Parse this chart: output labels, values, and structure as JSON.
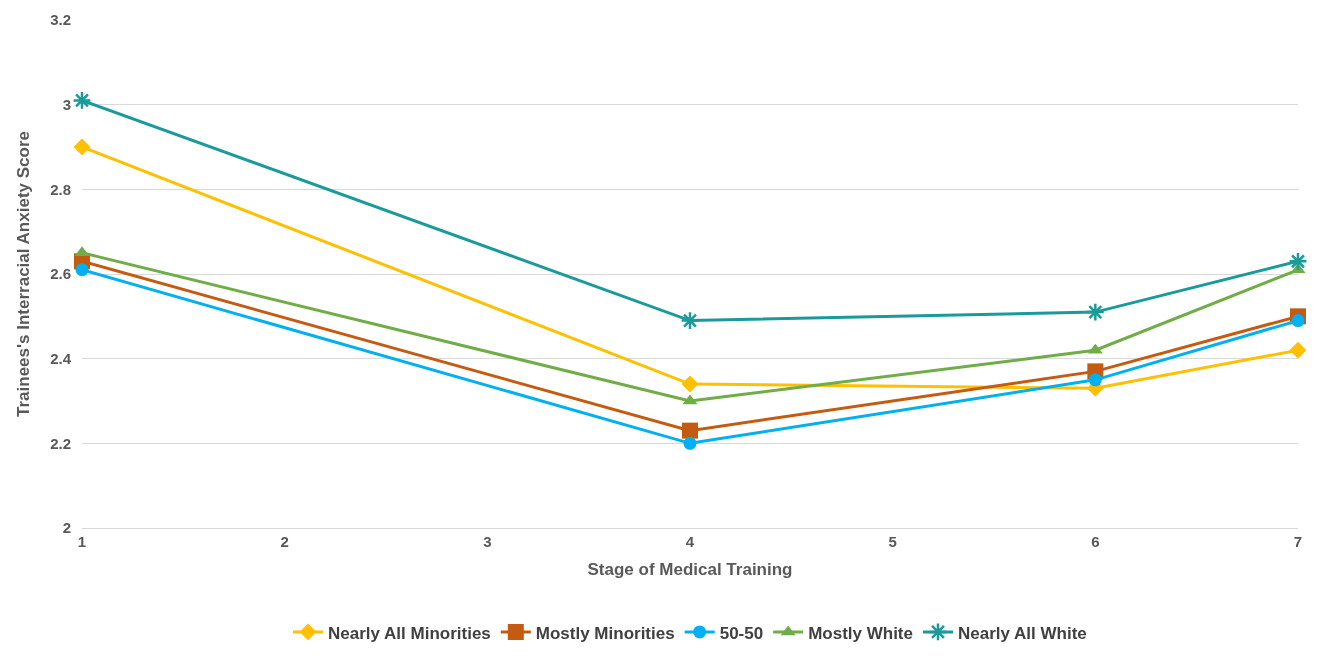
{
  "chart_data": {
    "type": "line",
    "xlabel": "Stage of Medical Training",
    "ylabel": "Trainees's Interracial Anxiety Score",
    "x": [
      1,
      4,
      6,
      7
    ],
    "xlim": [
      1,
      7
    ],
    "xticks": [
      1,
      2,
      3,
      4,
      5,
      6,
      7
    ],
    "ylim": [
      2,
      3.2
    ],
    "yticks": [
      2,
      2.2,
      2.4,
      2.6,
      2.8,
      3,
      3.2
    ],
    "grid": "y",
    "legend": "bottom",
    "line_style": "solid",
    "series": [
      {
        "name": "Nearly All Minorities",
        "color": "#ffc000",
        "marker": "diamond",
        "values": [
          2.9,
          2.34,
          2.33,
          2.42
        ]
      },
      {
        "name": "Mostly Minorities",
        "color": "#c55a11",
        "marker": "square",
        "values": [
          2.63,
          2.23,
          2.37,
          2.5
        ]
      },
      {
        "name": "50-50",
        "color": "#00b0f0",
        "marker": "circle",
        "values": [
          2.61,
          2.2,
          2.35,
          2.49
        ]
      },
      {
        "name": "Mostly White",
        "color": "#70ad47",
        "marker": "triangle",
        "values": [
          2.65,
          2.3,
          2.42,
          2.61
        ]
      },
      {
        "name": "Nearly All White",
        "color": "#1a9a9a",
        "marker": "cross",
        "values": [
          3.01,
          2.49,
          2.51,
          2.63
        ]
      }
    ]
  }
}
